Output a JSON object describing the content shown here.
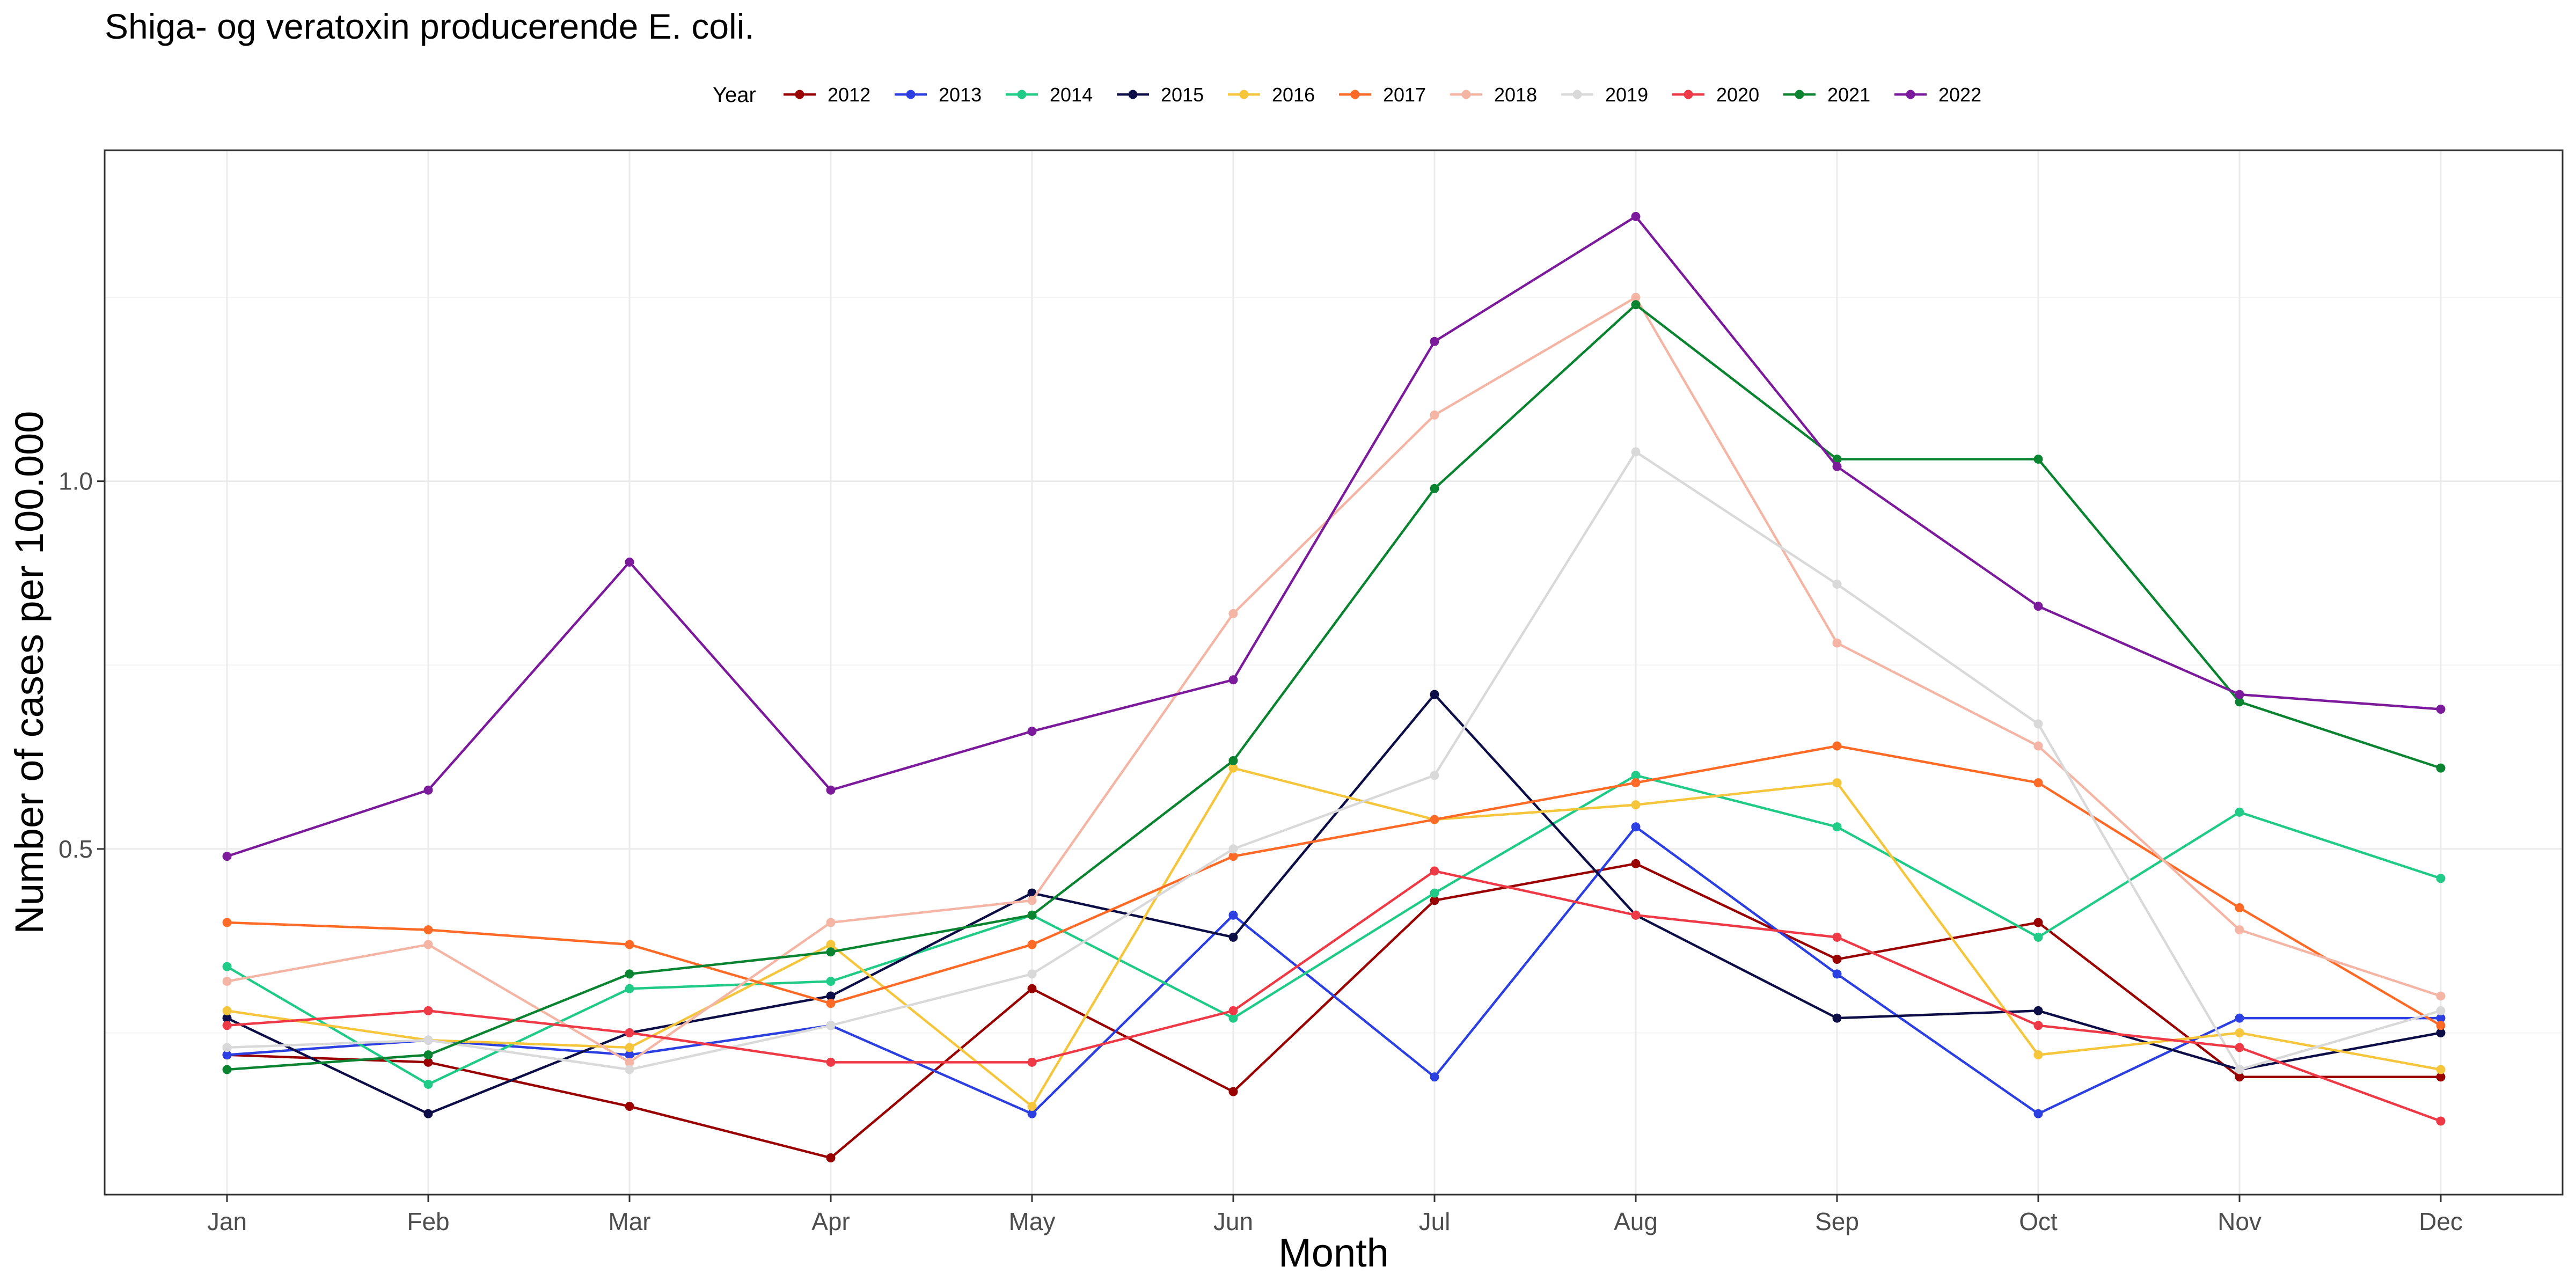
{
  "chart_data": {
    "type": "line",
    "title": "Shiga- og veratoxin producerende E. coli.",
    "xlabel": "Month",
    "ylabel": "Number of cases per 100.000",
    "legend_title": "Year",
    "legend_position": "top",
    "grid": true,
    "categories": [
      "Jan",
      "Feb",
      "Mar",
      "Apr",
      "May",
      "Jun",
      "Jul",
      "Aug",
      "Sep",
      "Oct",
      "Nov",
      "Dec"
    ],
    "ylim": [
      0.03,
      1.45
    ],
    "yticks": [
      0.5,
      1.0
    ],
    "ytick_labels": [
      "0.5",
      "1.0"
    ],
    "series": [
      {
        "name": "2012",
        "color": "#990000",
        "values": [
          0.22,
          0.21,
          0.15,
          0.08,
          0.31,
          0.17,
          0.43,
          0.48,
          0.35,
          0.4,
          0.19,
          0.19
        ]
      },
      {
        "name": "2013",
        "color": "#2c3fe0",
        "values": [
          0.22,
          0.24,
          0.22,
          0.26,
          0.14,
          0.41,
          0.19,
          0.53,
          0.33,
          0.14,
          0.27,
          0.27
        ]
      },
      {
        "name": "2014",
        "color": "#1fcb86",
        "values": [
          0.34,
          0.18,
          0.31,
          0.32,
          0.41,
          0.27,
          0.44,
          0.6,
          0.53,
          0.38,
          0.55,
          0.46
        ]
      },
      {
        "name": "2015",
        "color": "#0d0d47",
        "values": [
          0.27,
          0.14,
          0.25,
          0.3,
          0.44,
          0.38,
          0.71,
          0.41,
          0.27,
          0.28,
          0.2,
          0.25
        ]
      },
      {
        "name": "2016",
        "color": "#f5c53b",
        "values": [
          0.28,
          0.24,
          0.23,
          0.37,
          0.15,
          0.61,
          0.54,
          0.56,
          0.59,
          0.22,
          0.25,
          0.2
        ]
      },
      {
        "name": "2017",
        "color": "#ff6a26",
        "values": [
          0.4,
          0.39,
          0.37,
          0.29,
          0.37,
          0.49,
          0.54,
          0.59,
          0.64,
          0.59,
          0.42,
          0.26
        ]
      },
      {
        "name": "2018",
        "color": "#f4b5a4",
        "values": [
          0.32,
          0.37,
          0.21,
          0.4,
          0.43,
          0.82,
          1.09,
          1.25,
          0.78,
          0.64,
          0.39,
          0.3
        ]
      },
      {
        "name": "2019",
        "color": "#d9d9d9",
        "values": [
          0.23,
          0.24,
          0.2,
          0.26,
          0.33,
          0.5,
          0.6,
          1.04,
          0.86,
          0.67,
          0.2,
          0.28
        ]
      },
      {
        "name": "2020",
        "color": "#ee3a46",
        "values": [
          0.26,
          0.28,
          0.25,
          0.21,
          0.21,
          0.28,
          0.47,
          0.41,
          0.38,
          0.26,
          0.23,
          0.13
        ]
      },
      {
        "name": "2021",
        "color": "#0a8430",
        "values": [
          0.2,
          0.22,
          0.33,
          0.36,
          0.41,
          0.62,
          0.99,
          1.24,
          1.03,
          1.03,
          0.7,
          0.61
        ]
      },
      {
        "name": "2022",
        "color": "#7c1a9c",
        "values": [
          0.49,
          0.58,
          0.89,
          0.58,
          0.66,
          0.73,
          1.19,
          1.36,
          1.02,
          0.83,
          0.71,
          0.69
        ]
      }
    ]
  }
}
